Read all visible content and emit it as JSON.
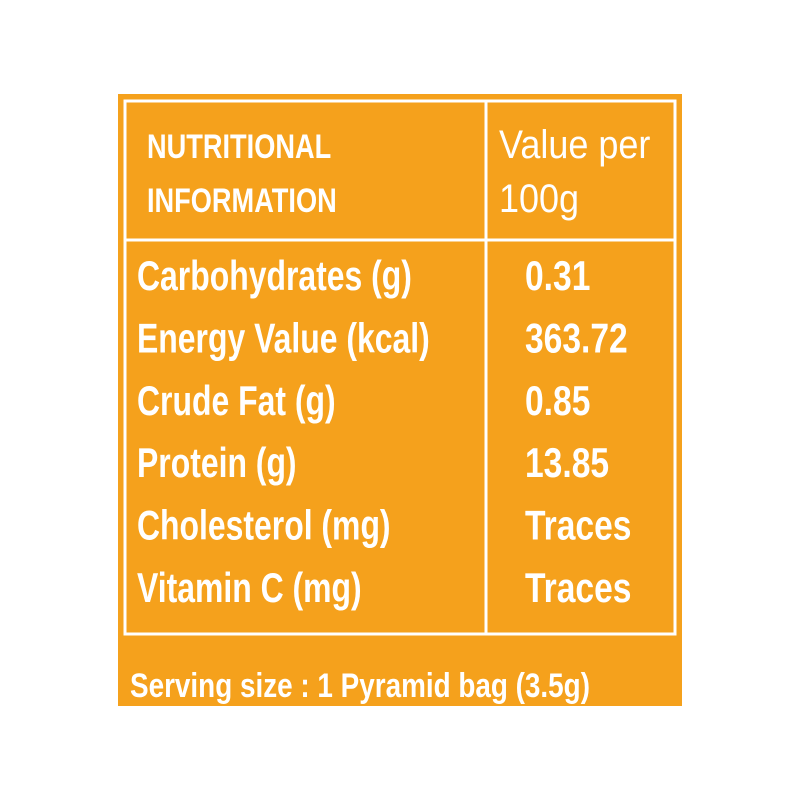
{
  "header": {
    "title_lines": [
      "NUTRITIONAL",
      "INFORMATION"
    ],
    "value_heading_lines": [
      "Value per",
      "100g"
    ]
  },
  "table": {
    "rows": [
      [
        "Carbohydrates (g)",
        "0.31"
      ],
      [
        "Energy Value (kcal)",
        "363.72"
      ],
      [
        "Crude Fat (g)",
        "0.85"
      ],
      [
        "Protein (g)",
        "13.85"
      ],
      [
        "Cholesterol (mg)",
        "Traces"
      ],
      [
        "Vitamin C (mg)",
        "Traces"
      ]
    ]
  },
  "footer": "Serving size : 1 Pyramid bag (3.5g)"
}
